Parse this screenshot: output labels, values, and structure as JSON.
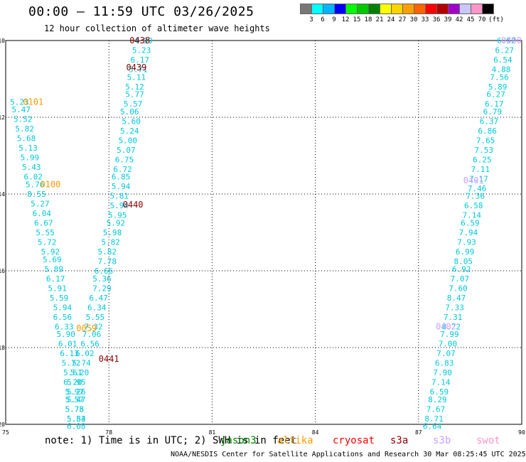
{
  "header": {
    "title": "00:00 – 11:59 UTC 03/26/2025",
    "subtitle": "12 hour collection of altimeter wave heights"
  },
  "legend": {
    "unit": "(ft)",
    "labels": [
      "3",
      "6",
      "9",
      "12",
      "15",
      "18",
      "21",
      "24",
      "27",
      "30",
      "33",
      "36",
      "39",
      "42",
      "45",
      "70"
    ],
    "colors": [
      "#777777",
      "#00ffff",
      "#00b4ff",
      "#0000ff",
      "#00ff00",
      "#00c800",
      "#008200",
      "#ffff00",
      "#ffd200",
      "#ffa000",
      "#ff6400",
      "#ff0000",
      "#b40000",
      "#a000c8",
      "#c8c8ff",
      "#ff96c8",
      "#000000"
    ]
  },
  "axes": {
    "x_ticks": [
      "75",
      "78",
      "81",
      "84",
      "87",
      "90"
    ],
    "y_ticks": [
      "10",
      "12",
      "14",
      "16",
      "18",
      "20"
    ]
  },
  "map_data": {
    "passes": [
      {
        "label": "0438",
        "color": "#8b0000",
        "lon": 78.9,
        "lat": 10.0
      },
      {
        "label": "0439",
        "color": "#8b0000",
        "lon": 78.8,
        "lat": 10.7
      },
      {
        "label": "0440",
        "color": "#8b0000",
        "lon": 78.7,
        "lat": 14.28
      },
      {
        "label": "0441",
        "color": "#8b0000",
        "lon": 78.0,
        "lat": 18.3
      },
      {
        "label": "0101",
        "color": "#ff9900",
        "lon": 75.8,
        "lat": 11.6
      },
      {
        "label": "0100",
        "color": "#ff9900",
        "lon": 76.3,
        "lat": 13.75
      },
      {
        "label": "0059",
        "color": "#ff9900",
        "lon": 77.35,
        "lat": 17.5
      },
      {
        "label": "0400",
        "color": "#c8a0ff",
        "lon": 89.7,
        "lat": 10.0
      },
      {
        "label": "0401",
        "color": "#c8a0ff",
        "lon": 88.6,
        "lat": 13.65
      },
      {
        "label": "0402",
        "color": "#c8a0ff",
        "lon": 87.8,
        "lat": 17.45
      }
    ],
    "tracks": [
      {
        "name": "track-a",
        "color": "#00c8dc",
        "points": [
          [
            79.0,
            10.0,
            "4.99"
          ],
          [
            78.95,
            10.25,
            "5.23"
          ],
          [
            78.9,
            10.5,
            "6.17"
          ],
          [
            78.85,
            10.75,
            "5.71"
          ],
          [
            78.8,
            10.95,
            "5.11"
          ],
          [
            78.75,
            11.2,
            "5.12"
          ],
          [
            78.75,
            11.4,
            "5.77"
          ],
          [
            78.7,
            11.65,
            "5.57"
          ],
          [
            78.6,
            11.85,
            "5.06"
          ],
          [
            78.65,
            12.1,
            "5.60"
          ],
          [
            78.6,
            12.35,
            "5.24"
          ],
          [
            78.55,
            12.6,
            "5.00"
          ],
          [
            78.5,
            12.85,
            "5.07"
          ],
          [
            78.45,
            13.1,
            "6.75"
          ],
          [
            78.4,
            13.35,
            "6.72"
          ],
          [
            78.35,
            13.55,
            "6.85"
          ],
          [
            78.35,
            13.8,
            "5.94"
          ],
          [
            78.3,
            14.05,
            "5.81"
          ],
          [
            78.3,
            14.3,
            "5.94"
          ],
          [
            78.25,
            14.55,
            "5.95"
          ],
          [
            78.2,
            14.75,
            "5.92"
          ],
          [
            78.1,
            15.0,
            "5.98"
          ],
          [
            78.05,
            15.25,
            "5.82"
          ],
          [
            77.95,
            15.5,
            "5.82"
          ],
          [
            77.95,
            15.75,
            "7.78"
          ],
          [
            77.85,
            16.0,
            "6.66"
          ],
          [
            77.8,
            16.2,
            "5.36"
          ],
          [
            77.8,
            16.45,
            "7.29"
          ],
          [
            77.7,
            16.7,
            "6.47"
          ],
          [
            77.65,
            16.95,
            "6.34"
          ],
          [
            77.6,
            17.2,
            "5.55"
          ],
          [
            77.55,
            17.45,
            "7.32"
          ],
          [
            77.5,
            17.65,
            "7.06"
          ],
          [
            77.45,
            17.9,
            "6.56"
          ],
          [
            77.3,
            18.15,
            "6.02"
          ],
          [
            77.2,
            18.4,
            "5.74"
          ],
          [
            77.15,
            18.65,
            "5.20"
          ],
          [
            77.05,
            18.9,
            "5.95"
          ],
          [
            77.05,
            19.15,
            "5.26"
          ],
          [
            77.05,
            19.35,
            "5.47"
          ],
          [
            77.0,
            19.6,
            "5.78"
          ],
          [
            77.05,
            19.85,
            "5.84"
          ],
          [
            77.05,
            20.05,
            "6.08"
          ]
        ]
      },
      {
        "name": "track-b",
        "color": "#00c8dc",
        "points": [
          [
            75.4,
            11.6,
            "5.23"
          ],
          [
            75.45,
            11.8,
            "5.47"
          ],
          [
            75.5,
            12.05,
            "5.52"
          ],
          [
            75.55,
            12.3,
            "5.82"
          ],
          [
            75.6,
            12.55,
            "5.68"
          ],
          [
            75.65,
            12.8,
            "5.13"
          ],
          [
            75.7,
            13.05,
            "5.99"
          ],
          [
            75.75,
            13.3,
            "5.43"
          ],
          [
            75.8,
            13.55,
            "6.02"
          ],
          [
            75.85,
            13.75,
            "5.76"
          ],
          [
            75.9,
            14.0,
            "8.55"
          ],
          [
            76.0,
            14.25,
            "5.27"
          ],
          [
            76.05,
            14.5,
            "6.04"
          ],
          [
            76.1,
            14.75,
            "6.67"
          ],
          [
            76.15,
            15.0,
            "5.55"
          ],
          [
            76.2,
            15.25,
            "5.72"
          ],
          [
            76.3,
            15.5,
            "5.92"
          ],
          [
            76.35,
            15.7,
            "5.69"
          ],
          [
            76.4,
            15.95,
            "5.89"
          ],
          [
            76.45,
            16.2,
            "6.17"
          ],
          [
            76.5,
            16.45,
            "5.91"
          ],
          [
            76.55,
            16.7,
            "5.59"
          ],
          [
            76.65,
            16.95,
            "5.94"
          ],
          [
            76.65,
            17.2,
            "6.56"
          ],
          [
            76.7,
            17.45,
            "6.33"
          ],
          [
            76.75,
            17.65,
            "5.90"
          ],
          [
            76.8,
            17.9,
            "6.01"
          ],
          [
            76.85,
            18.15,
            "6.13"
          ],
          [
            76.9,
            18.4,
            "5.72"
          ],
          [
            76.95,
            18.65,
            "5.61"
          ],
          [
            76.95,
            18.9,
            "6.20"
          ],
          [
            77.0,
            19.15,
            "5.97"
          ],
          [
            77.0,
            19.35,
            "5.57"
          ],
          [
            77.0,
            19.6,
            "5.75"
          ],
          [
            77.05,
            19.85,
            "5.53"
          ]
        ]
      },
      {
        "name": "track-c",
        "color": "#00c8dc",
        "points": [
          [
            89.55,
            10.0,
            "6.52"
          ],
          [
            89.5,
            10.25,
            "6.27"
          ],
          [
            89.45,
            10.5,
            "6.54"
          ],
          [
            89.4,
            10.75,
            "4.88"
          ],
          [
            89.35,
            10.95,
            "7.56"
          ],
          [
            89.3,
            11.2,
            "5.89"
          ],
          [
            89.25,
            11.4,
            "6.27"
          ],
          [
            89.2,
            11.65,
            "6.17"
          ],
          [
            89.15,
            11.85,
            "6.79"
          ],
          [
            89.05,
            12.1,
            "6.37"
          ],
          [
            89.0,
            12.35,
            "6.86"
          ],
          [
            88.95,
            12.6,
            "7.65"
          ],
          [
            88.9,
            12.85,
            "7.53"
          ],
          [
            88.85,
            13.1,
            "6.25"
          ],
          [
            88.8,
            13.35,
            "7.11"
          ],
          [
            88.75,
            13.6,
            "7.17"
          ],
          [
            88.7,
            13.85,
            "7.46"
          ],
          [
            88.65,
            14.05,
            "7.36"
          ],
          [
            88.6,
            14.3,
            "6.58"
          ],
          [
            88.55,
            14.55,
            "7.14"
          ],
          [
            88.5,
            14.75,
            "6.59"
          ],
          [
            88.45,
            15.0,
            "7.94"
          ],
          [
            88.4,
            15.25,
            "7.93"
          ],
          [
            88.35,
            15.5,
            "6.99"
          ],
          [
            88.3,
            15.75,
            "8.05"
          ],
          [
            88.25,
            15.95,
            "6.92"
          ],
          [
            88.2,
            16.2,
            "7.07"
          ],
          [
            88.15,
            16.45,
            "7.60"
          ],
          [
            88.1,
            16.7,
            "8.47"
          ],
          [
            88.05,
            16.95,
            "7.33"
          ],
          [
            88.0,
            17.2,
            "7.31"
          ],
          [
            87.95,
            17.45,
            "8.22"
          ],
          [
            87.9,
            17.65,
            "7.99"
          ],
          [
            87.85,
            17.9,
            "7.00"
          ],
          [
            87.8,
            18.15,
            "7.07"
          ],
          [
            87.75,
            18.4,
            "6.83"
          ],
          [
            87.7,
            18.65,
            "7.90"
          ],
          [
            87.65,
            18.9,
            "7.14"
          ],
          [
            87.6,
            19.15,
            "6.59"
          ],
          [
            87.55,
            19.35,
            "8.29"
          ],
          [
            87.5,
            19.6,
            "7.67"
          ],
          [
            87.45,
            19.85,
            "8.71"
          ],
          [
            87.4,
            20.05,
            "6.64"
          ]
        ]
      }
    ]
  },
  "footer": {
    "note": "note: 1) Time is in UTC; 2) SWH is in feet",
    "satellites": [
      {
        "name": "jason3",
        "color": "#008200"
      },
      {
        "name": "altika",
        "color": "#ff9900"
      },
      {
        "name": "cryosat",
        "color": "#ff0000"
      },
      {
        "name": "s3a",
        "color": "#8b0000"
      },
      {
        "name": "s3b",
        "color": "#c8a0ff"
      },
      {
        "name": "swot",
        "color": "#ff96c8"
      }
    ],
    "credit": "NOAA/NESDIS Center for Satellite Applications and Research   30 Mar 08:25:45 UTC 2025"
  }
}
